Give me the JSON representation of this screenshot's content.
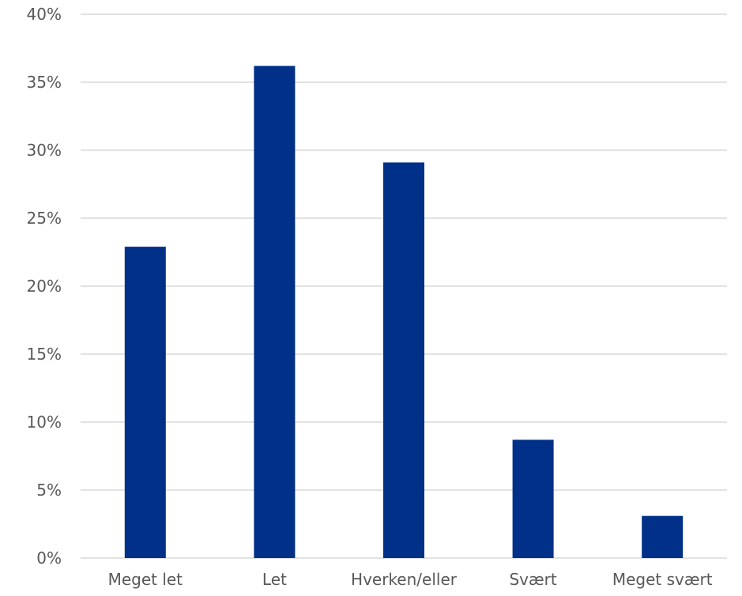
{
  "chart_data": {
    "type": "bar",
    "categories": [
      "Meget let",
      "Let",
      "Hverken/eller",
      "Svært",
      "Meget svært"
    ],
    "series": [
      {
        "values": [
          22.9,
          36.2,
          29.1,
          8.7,
          3.1
        ]
      }
    ],
    "ylim": [
      0,
      40
    ],
    "yticks": [
      "0%",
      "5%",
      "10%",
      "15%",
      "20%",
      "25%",
      "30%",
      "35%",
      "40%"
    ],
    "title": "",
    "xlabel": "",
    "ylabel": "",
    "grid": true,
    "legend": "none",
    "bar_color": "#003087",
    "grid_color": "#d9d9d9",
    "text_color": "#595959"
  }
}
